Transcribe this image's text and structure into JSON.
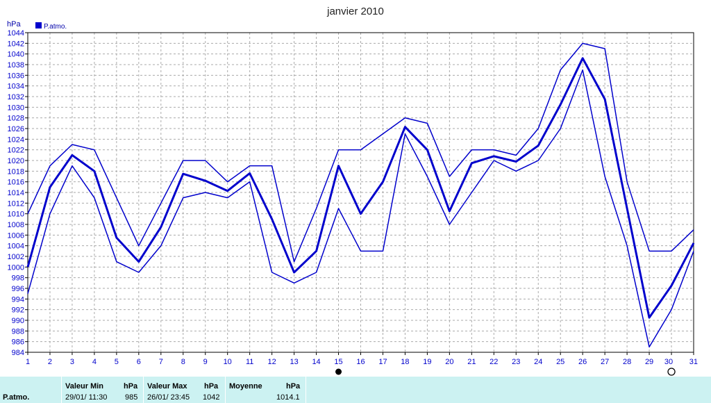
{
  "chart_data": {
    "type": "line",
    "title": "janvier 2010",
    "ylabel": "hPa",
    "legend": [
      {
        "label": "P.atmo.",
        "color": "#0000cc"
      }
    ],
    "legend_placement": "top-left",
    "grid": true,
    "ylim": [
      984,
      1044
    ],
    "xlim": [
      1,
      31
    ],
    "y_ticks": [
      984,
      986,
      988,
      990,
      992,
      994,
      996,
      998,
      1000,
      1002,
      1004,
      1006,
      1008,
      1010,
      1012,
      1014,
      1016,
      1018,
      1020,
      1022,
      1024,
      1026,
      1028,
      1030,
      1032,
      1034,
      1036,
      1038,
      1040,
      1042,
      1044
    ],
    "x": [
      1,
      2,
      3,
      4,
      5,
      6,
      7,
      8,
      9,
      10,
      11,
      12,
      13,
      14,
      15,
      16,
      17,
      18,
      19,
      20,
      21,
      22,
      23,
      24,
      25,
      26,
      27,
      28,
      29,
      30,
      31
    ],
    "series": [
      {
        "role": "max",
        "values": [
          1010,
          1019,
          1023,
          1022,
          1013,
          1004,
          1012,
          1020,
          1020,
          1016,
          1019,
          1019,
          1001,
          1011,
          1022,
          1022,
          1025,
          1028,
          1027,
          1017,
          1022,
          1022,
          1021,
          1026,
          1037,
          1042,
          1041,
          1016,
          1003,
          1003,
          1007
        ]
      },
      {
        "role": "mean",
        "values": [
          1000,
          1015,
          1021,
          1018,
          1005.5,
          1001,
          1007.5,
          1017.5,
          1016.2,
          1014.3,
          1017.6,
          1009,
          999,
          1003,
          1019,
          1010,
          1016,
          1026.3,
          1022,
          1010.5,
          1019.5,
          1020.8,
          1019.8,
          1022.8,
          1030.5,
          1039.2,
          1031.5,
          1011,
          990.5,
          996.5,
          1004.5
        ]
      },
      {
        "role": "min",
        "values": [
          995,
          1010,
          1019,
          1013,
          1001,
          999,
          1004,
          1013,
          1014,
          1013,
          1016,
          999,
          997,
          999,
          1011,
          1003,
          1003,
          1025,
          1017,
          1008,
          1014,
          1020,
          1018,
          1020,
          1026,
          1037,
          1017,
          1004,
          985,
          992,
          1003
        ]
      }
    ],
    "markers": [
      {
        "day": 15,
        "symbol": "filled-circle"
      },
      {
        "day": 30,
        "symbol": "open-circle"
      }
    ]
  },
  "stats": {
    "row_label": "P.atmo.",
    "min_header": "Valeur Min",
    "min_unit": "hPa",
    "min_date": "29/01/  11:30",
    "min_value": "985",
    "max_header": "Valeur Max",
    "max_unit": "hPa",
    "max_date": "26/01/  23:45",
    "max_value": "1042",
    "avg_header": "Moyenne",
    "avg_unit": "hPa",
    "avg_value": "1014.1"
  }
}
